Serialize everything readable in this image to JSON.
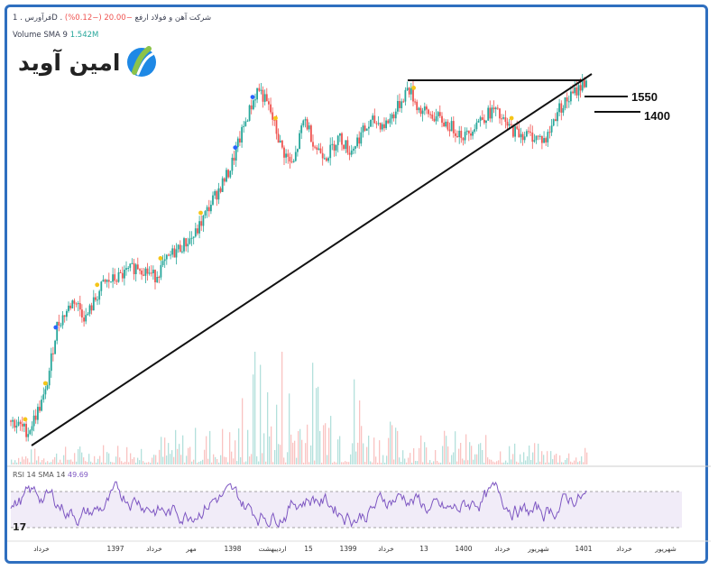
{
  "header": {
    "symbol_line": "فرآورس . 1D . شرکت آهن و فولاد ارفع",
    "change": "−20.00 (−0.12%)",
    "volume_label": "Volume SMA 9",
    "volume_value": "1.542M"
  },
  "logo": {
    "text": "امین آوید",
    "name": "amin-avid-logo"
  },
  "levels": [
    {
      "label": "1550"
    },
    {
      "label": "1400"
    }
  ],
  "rsi": {
    "label": "RSI 14 SMA 14",
    "value": "49.69"
  },
  "tv_mark": "17",
  "colors": {
    "up": "#26a69a",
    "down": "#ef5350",
    "rsi": "#7e57c2",
    "frame": "#2f6fbf",
    "marker_yellow": "#f5c518",
    "marker_blue": "#2962ff"
  },
  "chart_data": {
    "type": "line",
    "x_labels": [
      "خرداد",
      "1397",
      "خرداد",
      "مهر",
      "1398",
      "اردیبهشت",
      "15",
      "1399",
      "خرداد",
      "13",
      "1400",
      "خرداد",
      "شهریور",
      "1401",
      "خرداد",
      "شهریور"
    ],
    "price_path_relative": [
      [
        0,
        0.08
      ],
      [
        0.03,
        0.05
      ],
      [
        0.06,
        0.15
      ],
      [
        0.08,
        0.33
      ],
      [
        0.11,
        0.4
      ],
      [
        0.13,
        0.35
      ],
      [
        0.16,
        0.44
      ],
      [
        0.19,
        0.46
      ],
      [
        0.22,
        0.49
      ],
      [
        0.25,
        0.46
      ],
      [
        0.28,
        0.52
      ],
      [
        0.32,
        0.57
      ],
      [
        0.35,
        0.66
      ],
      [
        0.38,
        0.74
      ],
      [
        0.41,
        0.88
      ],
      [
        0.43,
        0.96
      ],
      [
        0.45,
        0.9
      ],
      [
        0.47,
        0.8
      ],
      [
        0.49,
        0.75
      ],
      [
        0.51,
        0.88
      ],
      [
        0.53,
        0.8
      ],
      [
        0.55,
        0.78
      ],
      [
        0.57,
        0.83
      ],
      [
        0.59,
        0.79
      ],
      [
        0.61,
        0.84
      ],
      [
        0.63,
        0.87
      ],
      [
        0.65,
        0.86
      ],
      [
        0.67,
        0.9
      ],
      [
        0.69,
        0.96
      ],
      [
        0.71,
        0.9
      ],
      [
        0.74,
        0.88
      ],
      [
        0.77,
        0.85
      ],
      [
        0.79,
        0.83
      ],
      [
        0.81,
        0.87
      ],
      [
        0.84,
        0.9
      ],
      [
        0.86,
        0.86
      ],
      [
        0.88,
        0.84
      ],
      [
        0.91,
        0.83
      ],
      [
        0.93,
        0.82
      ],
      [
        0.95,
        0.9
      ],
      [
        0.97,
        0.93
      ],
      [
        1.0,
        0.98
      ]
    ],
    "rsi_band": [
      30,
      70
    ]
  }
}
